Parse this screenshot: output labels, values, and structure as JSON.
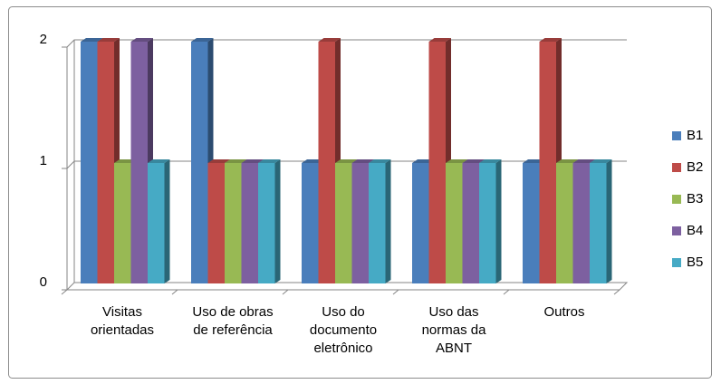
{
  "chart_data": {
    "type": "bar",
    "categories": [
      "Visitas orientadas",
      "Uso de obras de referência",
      "Uso do documento eletrônico",
      "Uso das normas da ABNT",
      "Outros"
    ],
    "series": [
      {
        "name": "B1",
        "color": "#4a7ebb",
        "values": [
          2,
          2,
          1,
          1,
          1
        ]
      },
      {
        "name": "B2",
        "color": "#be4b48",
        "values": [
          2,
          1,
          2,
          2,
          2
        ]
      },
      {
        "name": "B3",
        "color": "#98b954",
        "values": [
          1,
          1,
          1,
          1,
          1
        ]
      },
      {
        "name": "B4",
        "color": "#7d60a0",
        "values": [
          2,
          1,
          1,
          1,
          1
        ]
      },
      {
        "name": "B5",
        "color": "#46aac5",
        "values": [
          1,
          1,
          1,
          1,
          1
        ]
      }
    ],
    "ylim": [
      0,
      2
    ],
    "yticks": [
      0,
      1,
      2
    ],
    "grid": true,
    "legend": "right"
  }
}
